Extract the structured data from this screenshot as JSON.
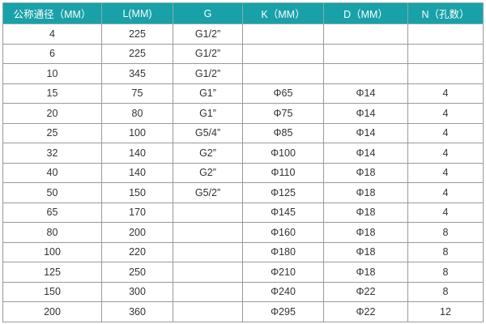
{
  "table": {
    "header_color": "#18a1a8",
    "headers": [
      "公称通径（MM）",
      "L(MM)",
      "G",
      "K（MM）",
      "D（MM）",
      "N（孔数）"
    ],
    "rows": [
      [
        "4",
        "225",
        "G1/2”",
        "",
        "",
        ""
      ],
      [
        "6",
        "225",
        "G1/2”",
        "",
        "",
        ""
      ],
      [
        "10",
        "345",
        "G1/2”",
        "",
        "",
        ""
      ],
      [
        "15",
        "75",
        "G1”",
        "Φ65",
        "Φ14",
        "4"
      ],
      [
        "20",
        "80",
        "G1”",
        "Φ75",
        "Φ14",
        "4"
      ],
      [
        "25",
        "100",
        "G5/4”",
        "Φ85",
        "Φ14",
        "4"
      ],
      [
        "32",
        "140",
        "G2”",
        "Φ100",
        "Φ14",
        "4"
      ],
      [
        "40",
        "140",
        "G2”",
        "Φ110",
        "Φ18",
        "4"
      ],
      [
        "50",
        "150",
        "G5/2”",
        "Φ125",
        "Φ18",
        "4"
      ],
      [
        "65",
        "170",
        "",
        "Φ145",
        "Φ18",
        "4"
      ],
      [
        "80",
        "200",
        "",
        "Φ160",
        "Φ18",
        "8"
      ],
      [
        "100",
        "220",
        "",
        "Φ180",
        "Φ18",
        "8"
      ],
      [
        "125",
        "250",
        "",
        "Φ210",
        "Φ18",
        "8"
      ],
      [
        "150",
        "300",
        "",
        "Φ240",
        "Φ22",
        "8"
      ],
      [
        "200",
        "360",
        "",
        "Φ295",
        "Φ22",
        "12"
      ]
    ]
  }
}
